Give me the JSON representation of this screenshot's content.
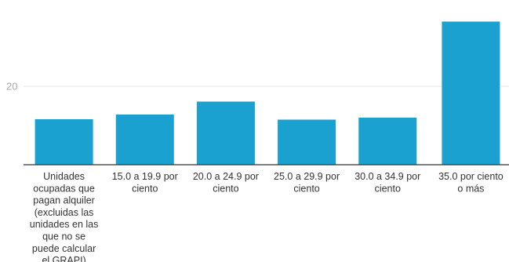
{
  "chart_data": {
    "type": "bar",
    "categories": [
      "Unidades ocupadas que pagan alquiler (excluidas las unidades en las que no se puede calcular el GRAPI)",
      "15.0 a 19.9 por ciento",
      "20.0 a 24.9 por ciento",
      "25.0 a 29.9 por ciento",
      "30.0 a 34.9 por ciento",
      "35.0 por ciento o más"
    ],
    "category_lines": [
      [
        "Unidades",
        "ocupadas que",
        "pagan alquiler",
        "(excluidas las",
        "unidades en las",
        "que no se",
        "puede calcular",
        "el GRAPI)"
      ],
      [
        "15.0 a 19.9 por",
        "ciento"
      ],
      [
        "20.0 a 24.9 por",
        "ciento"
      ],
      [
        "25.0 a 29.9 por",
        "ciento"
      ],
      [
        "30.0 a 34.9 por",
        "ciento"
      ],
      [
        "35.0 por ciento",
        "o más"
      ]
    ],
    "values": [
      11.6,
      12.8,
      16.1,
      11.5,
      12.0,
      36.5
    ],
    "yticks": [
      20
    ],
    "ylim": [
      0,
      40
    ],
    "title": "",
    "xlabel": "",
    "ylabel": "",
    "grid": true,
    "bar_color": "#1aa1cf"
  }
}
